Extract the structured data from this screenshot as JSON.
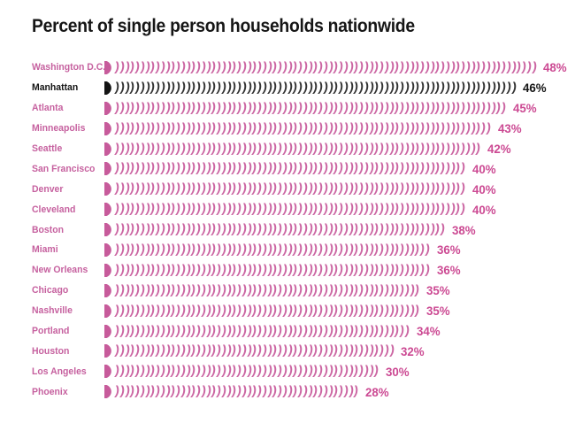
{
  "title": "Percent of single person households nationwide",
  "colors": {
    "background": "#ffffff",
    "title_text": "#161616",
    "pink_label": "#c6619f",
    "pink_bar": "#cb65a2",
    "pink_value": "#cc4a93",
    "highlight_black": "#141414"
  },
  "chart_data": {
    "type": "bar",
    "orientation": "horizontal",
    "title": "Percent of single person households nationwide",
    "unit": "%",
    "xlim": [
      0,
      50
    ],
    "grid": false,
    "legend": false,
    "bar_glyph": ")",
    "bar_style": "pictorial-repeated-parenthesis-with-leading-half-disc-icon",
    "highlight_category": "Manhattan",
    "categories": [
      "Washington D.C.",
      "Manhattan",
      "Atlanta",
      "Minneapolis",
      "Seattle",
      "San Francisco",
      "Denver",
      "Cleveland",
      "Boston",
      "Miami",
      "New Orleans",
      "Chicago",
      "Nashville",
      "Portland",
      "Houston",
      "Los Angeles",
      "Phoenix"
    ],
    "values": [
      48,
      46,
      45,
      43,
      42,
      40,
      40,
      40,
      38,
      36,
      36,
      35,
      35,
      34,
      32,
      30,
      28
    ],
    "rows": [
      {
        "city": "Washington D.C.",
        "value": 48,
        "label": "48%",
        "highlighted": false
      },
      {
        "city": "Manhattan",
        "value": 46,
        "label": "46%",
        "highlighted": true
      },
      {
        "city": "Atlanta",
        "value": 45,
        "label": "45%",
        "highlighted": false
      },
      {
        "city": "Minneapolis",
        "value": 43,
        "label": "43%",
        "highlighted": false
      },
      {
        "city": "Seattle",
        "value": 42,
        "label": "42%",
        "highlighted": false
      },
      {
        "city": "San Francisco",
        "value": 40,
        "label": "40%",
        "highlighted": false
      },
      {
        "city": "Denver",
        "value": 40,
        "label": "40%",
        "highlighted": false
      },
      {
        "city": "Cleveland",
        "value": 40,
        "label": "40%",
        "highlighted": false
      },
      {
        "city": "Boston",
        "value": 38,
        "label": "38%",
        "highlighted": false
      },
      {
        "city": "Miami",
        "value": 36,
        "label": "36%",
        "highlighted": false
      },
      {
        "city": "New Orleans",
        "value": 36,
        "label": "36%",
        "highlighted": false
      },
      {
        "city": "Chicago",
        "value": 35,
        "label": "35%",
        "highlighted": false
      },
      {
        "city": "Nashville",
        "value": 35,
        "label": "35%",
        "highlighted": false
      },
      {
        "city": "Portland",
        "value": 34,
        "label": "34%",
        "highlighted": false
      },
      {
        "city": "Houston",
        "value": 32,
        "label": "32%",
        "highlighted": false
      },
      {
        "city": "Los Angeles",
        "value": 30,
        "label": "30%",
        "highlighted": false
      },
      {
        "city": "Phoenix",
        "value": 28,
        "label": "28%",
        "highlighted": false
      }
    ]
  }
}
